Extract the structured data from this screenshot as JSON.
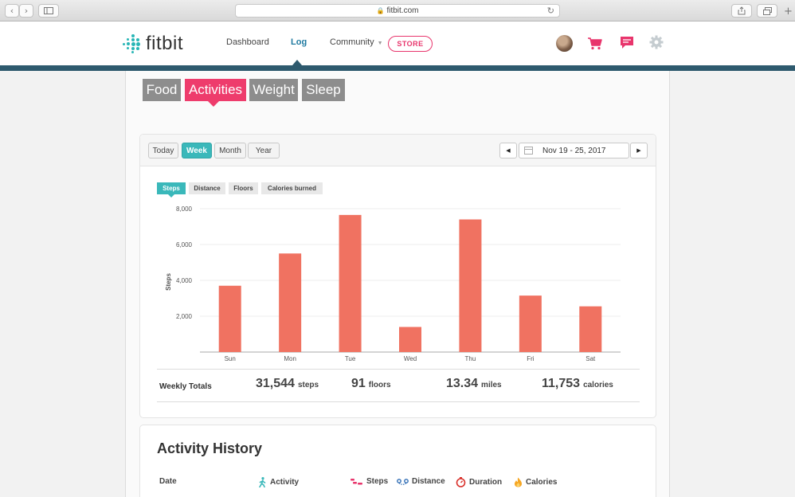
{
  "browser": {
    "url": "fitbit.com"
  },
  "site": {
    "logo": "fitbit",
    "nav": [
      {
        "label": "Dashboard"
      },
      {
        "label": "Log"
      },
      {
        "label": "Community"
      }
    ],
    "store_label": "STORE"
  },
  "sections": [
    {
      "label": "Food"
    },
    {
      "label": "Activities"
    },
    {
      "label": "Weight"
    },
    {
      "label": "Sleep"
    }
  ],
  "periods": [
    {
      "label": "Today"
    },
    {
      "label": "Week"
    },
    {
      "label": "Month"
    },
    {
      "label": "Year"
    }
  ],
  "date_range": "Nov 19 - 25, 2017",
  "metric_tabs": [
    {
      "label": "Steps"
    },
    {
      "label": "Distance"
    },
    {
      "label": "Floors"
    },
    {
      "label": "Calories burned"
    }
  ],
  "chart_data": {
    "type": "bar",
    "categories": [
      "Sun",
      "Mon",
      "Tue",
      "Wed",
      "Thu",
      "Fri",
      "Sat"
    ],
    "values": [
      3700,
      5500,
      7650,
      1400,
      7400,
      3150,
      2550
    ],
    "ylabel": "Steps",
    "ylim": [
      0,
      8000
    ],
    "yticks": [
      "2,000",
      "4,000",
      "6,000",
      "8,000"
    ],
    "ytick_values": [
      2000,
      4000,
      6000,
      8000
    ],
    "bar_color": "#f07261",
    "grid": true
  },
  "totals": {
    "label": "Weekly Totals",
    "items": [
      {
        "value": "31,544",
        "unit": "steps"
      },
      {
        "value": "91",
        "unit": "floors"
      },
      {
        "value": "13.34",
        "unit": "miles"
      },
      {
        "value": "11,753",
        "unit": "calories"
      }
    ]
  },
  "history": {
    "title": "Activity History",
    "columns": [
      {
        "label": "Date"
      },
      {
        "label": "Activity",
        "icon": "walking-figure-icon"
      },
      {
        "label": "Steps",
        "icon": "footsteps-icon"
      },
      {
        "label": "Distance",
        "icon": "route-icon"
      },
      {
        "label": "Duration",
        "icon": "stopwatch-icon"
      },
      {
        "label": "Calories",
        "icon": "flame-icon"
      }
    ]
  },
  "colors": {
    "accent_teal": "#3ab8ba",
    "accent_pink": "#ee3c6c",
    "header_bar": "#2e5a6e",
    "bar": "#f07261"
  }
}
